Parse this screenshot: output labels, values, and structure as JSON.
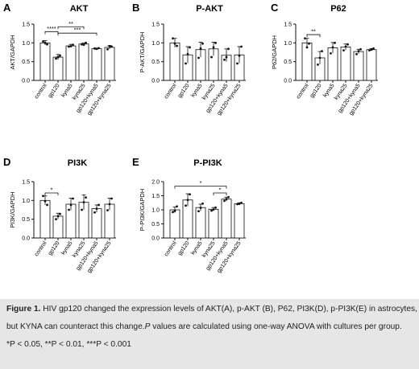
{
  "chart_data": [
    {
      "panel": "A",
      "type": "bar",
      "title": "AKT",
      "ylabel": "AKT/GAPDH",
      "ylim": [
        0,
        1.5
      ],
      "yticks": [
        "0.0",
        "0.5",
        "1.0",
        "1.5"
      ],
      "categories": [
        "control",
        "gp120",
        "kyna5",
        "kyna25",
        "gp120+kyna5",
        "gp120+kyna25"
      ],
      "values": [
        1.0,
        0.62,
        0.92,
        0.97,
        0.85,
        0.88
      ],
      "errors": [
        0.06,
        0.07,
        0.04,
        0.03,
        0.01,
        0.05
      ],
      "points": [
        [
          1.04,
          0.96,
          1.0
        ],
        [
          0.58,
          0.66,
          0.62
        ],
        [
          0.9,
          0.95,
          0.91
        ],
        [
          0.96,
          1.0,
          0.95
        ],
        [
          0.85,
          0.86,
          0.84
        ],
        [
          0.83,
          0.9,
          0.91
        ]
      ],
      "sig": [
        {
          "from": 0,
          "to": 1,
          "label": "****",
          "y": 1.3
        },
        {
          "from": 1,
          "to": 3,
          "label": "**",
          "y": 1.43
        },
        {
          "from": 1,
          "to": 4,
          "label": "***",
          "y": 1.26
        }
      ]
    },
    {
      "panel": "B",
      "type": "bar",
      "title": "P-AKT",
      "ylabel": "P-AKT/GAPDH",
      "ylim": [
        0,
        1.5
      ],
      "yticks": [
        "0.0",
        "0.5",
        "1.0",
        "1.5"
      ],
      "categories": [
        "control",
        "gp120",
        "kyna5",
        "kyna25",
        "gp120+kyna5",
        "gp120+kyna25"
      ],
      "values": [
        1.0,
        0.68,
        0.82,
        0.84,
        0.67,
        0.68
      ],
      "errors": [
        0.12,
        0.22,
        0.2,
        0.18,
        0.17,
        0.22
      ],
      "points": [
        [
          1.12,
          0.92,
          0.98
        ],
        [
          0.45,
          0.88,
          0.7
        ],
        [
          0.6,
          0.98,
          0.85
        ],
        [
          0.62,
          1.0,
          0.88
        ],
        [
          0.55,
          0.84,
          0.62
        ],
        [
          0.45,
          0.9,
          0.66
        ]
      ],
      "sig": []
    },
    {
      "panel": "C",
      "type": "bar",
      "title": "P62",
      "ylabel": "P62/GAPDH",
      "ylim": [
        0,
        1.5
      ],
      "yticks": [
        "0.0",
        "0.5",
        "1.0",
        "1.5"
      ],
      "categories": [
        "control",
        "gp120",
        "kyna5",
        "kyna25",
        "gp120+kyna5",
        "gp120+kyna25"
      ],
      "values": [
        1.0,
        0.6,
        0.87,
        0.89,
        0.77,
        0.82
      ],
      "errors": [
        0.12,
        0.17,
        0.14,
        0.08,
        0.06,
        0.03
      ],
      "points": [
        [
          1.12,
          0.98,
          0.88
        ],
        [
          0.42,
          0.78,
          0.6
        ],
        [
          0.72,
          1.0,
          0.88
        ],
        [
          0.8,
          0.96,
          0.9
        ],
        [
          0.7,
          0.83,
          0.78
        ],
        [
          0.8,
          0.85,
          0.82
        ]
      ],
      "sig": [
        {
          "from": 0,
          "to": 1,
          "label": "**",
          "y": 1.22
        }
      ]
    },
    {
      "panel": "D",
      "type": "bar",
      "title": "PI3K",
      "ylabel": "PI3K/GAPDH",
      "ylim": [
        0,
        1.5
      ],
      "yticks": [
        "0.0",
        "0.5",
        "1.0",
        "1.5"
      ],
      "categories": [
        "control",
        "gp120",
        "kyna5",
        "kyna25",
        "gp120+kyna5",
        "gp120+kyna25"
      ],
      "values": [
        1.0,
        0.58,
        0.9,
        0.95,
        0.78,
        0.9
      ],
      "errors": [
        0.12,
        0.08,
        0.16,
        0.2,
        0.1,
        0.16
      ],
      "points": [
        [
          1.12,
          0.88,
          0.98
        ],
        [
          0.5,
          0.64,
          0.58
        ],
        [
          0.75,
          1.05,
          0.88
        ],
        [
          0.75,
          1.08,
          0.95
        ],
        [
          0.68,
          0.88,
          0.78
        ],
        [
          0.74,
          1.05,
          0.9
        ]
      ],
      "sig": [
        {
          "from": 0,
          "to": 1,
          "label": "*",
          "y": 1.2
        }
      ]
    },
    {
      "panel": "E",
      "type": "bar",
      "title": "P-PI3K",
      "ylabel": "P-PI3K/GAPDH",
      "ylim": [
        0,
        2.0
      ],
      "yticks": [
        "0.0",
        "0.5",
        "1.0",
        "1.5",
        "2.0"
      ],
      "categories": [
        "control",
        "gp120",
        "kyna5",
        "kyna25",
        "gp120+kyna5",
        "gp120+kyna25"
      ],
      "values": [
        1.0,
        1.35,
        1.08,
        1.02,
        1.38,
        1.22
      ],
      "errors": [
        0.1,
        0.22,
        0.12,
        0.06,
        0.07,
        0.03
      ],
      "points": [
        [
          0.92,
          1.12,
          0.96
        ],
        [
          1.15,
          1.55,
          1.35
        ],
        [
          0.95,
          1.22,
          1.07
        ],
        [
          0.97,
          1.08,
          1.01
        ],
        [
          1.32,
          1.45,
          1.38
        ],
        [
          1.2,
          1.25,
          1.21
        ]
      ],
      "sig": [
        {
          "from": 0,
          "to": 4,
          "label": "*",
          "y": 1.84
        },
        {
          "from": 3,
          "to": 4,
          "label": "*",
          "y": 1.6
        }
      ]
    }
  ],
  "caption": {
    "line1_bold": "Figure 1.",
    "line1_rest": " HIV gp120 changed the expression levels of AKT(A), p-AKT (B), P62, PI3K(D), p-PI3K(E) in astrocytes,",
    "line2_pre": "but KYNA can counteract this change.",
    "line2_italic": "P",
    "line2_post": " values are calculated using one-way ANOVA with cultures per group.",
    "line3": "*P < 0.05, **P < 0.01, ***P < 0.001"
  }
}
